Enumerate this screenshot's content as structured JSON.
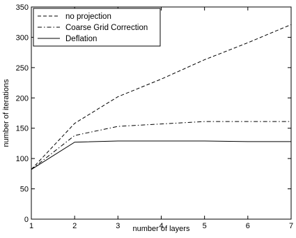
{
  "chart_data": {
    "type": "line",
    "xlabel": "number of layers",
    "ylabel": "number of iterations",
    "xlim": [
      1,
      7
    ],
    "ylim": [
      0,
      350
    ],
    "xticks": [
      1,
      2,
      3,
      4,
      5,
      6,
      7
    ],
    "yticks": [
      0,
      50,
      100,
      150,
      200,
      250,
      300,
      350
    ],
    "x": [
      1,
      2,
      3,
      4,
      5,
      6,
      7
    ],
    "grid": false,
    "legend_position": "top-left",
    "series": [
      {
        "name": "no projection",
        "values": [
          82,
          158,
          202,
          231,
          263,
          291,
          321
        ],
        "style": "dashed",
        "color": "#000000"
      },
      {
        "name": "Coarse Grid Correction",
        "values": [
          82,
          138,
          153,
          157,
          161,
          161,
          161
        ],
        "style": "dashdot",
        "color": "#000000"
      },
      {
        "name": "Deflation",
        "values": [
          82,
          127,
          129,
          129,
          129,
          128,
          128
        ],
        "style": "solid",
        "color": "#000000"
      }
    ]
  }
}
